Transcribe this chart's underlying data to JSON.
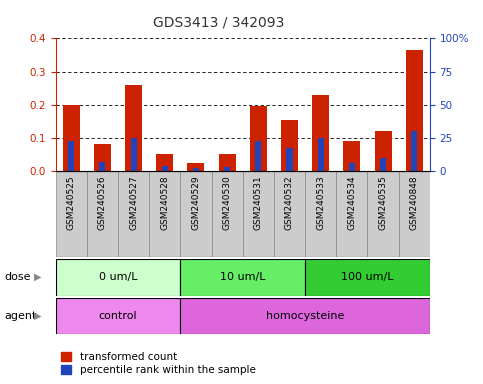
{
  "title": "GDS3413 / 342093",
  "samples": [
    "GSM240525",
    "GSM240526",
    "GSM240527",
    "GSM240528",
    "GSM240529",
    "GSM240530",
    "GSM240531",
    "GSM240532",
    "GSM240533",
    "GSM240534",
    "GSM240535",
    "GSM240848"
  ],
  "transformed_count": [
    0.2,
    0.08,
    0.26,
    0.052,
    0.025,
    0.05,
    0.195,
    0.155,
    0.23,
    0.09,
    0.12,
    0.365
  ],
  "percentile_rank_scaled": [
    0.09,
    0.028,
    0.1,
    0.016,
    0.008,
    0.012,
    0.09,
    0.07,
    0.1,
    0.025,
    0.04,
    0.12
  ],
  "ylim_left": [
    0,
    0.4
  ],
  "ylim_right": [
    0,
    100
  ],
  "yticks_left": [
    0,
    0.1,
    0.2,
    0.3,
    0.4
  ],
  "yticks_right": [
    0,
    25,
    50,
    75,
    100
  ],
  "bar_color_red": "#CC2200",
  "bar_color_blue": "#2244BB",
  "dose_groups": [
    {
      "label": "0 um/L",
      "start": 0,
      "end": 3,
      "color": "#CCFFCC"
    },
    {
      "label": "10 um/L",
      "start": 4,
      "end": 7,
      "color": "#66EE66"
    },
    {
      "label": "100 um/L",
      "start": 8,
      "end": 11,
      "color": "#33CC33"
    }
  ],
  "agent_groups": [
    {
      "label": "control",
      "start": 0,
      "end": 3,
      "color": "#EE88EE"
    },
    {
      "label": "homocysteine",
      "start": 4,
      "end": 11,
      "color": "#DD66DD"
    }
  ],
  "dose_label": "dose",
  "agent_label": "agent",
  "legend_red": "transformed count",
  "legend_blue": "percentile rank within the sample",
  "xtick_bg": "#CCCCCC",
  "left_axis_color": "#CC2200",
  "right_axis_color": "#2244BB"
}
